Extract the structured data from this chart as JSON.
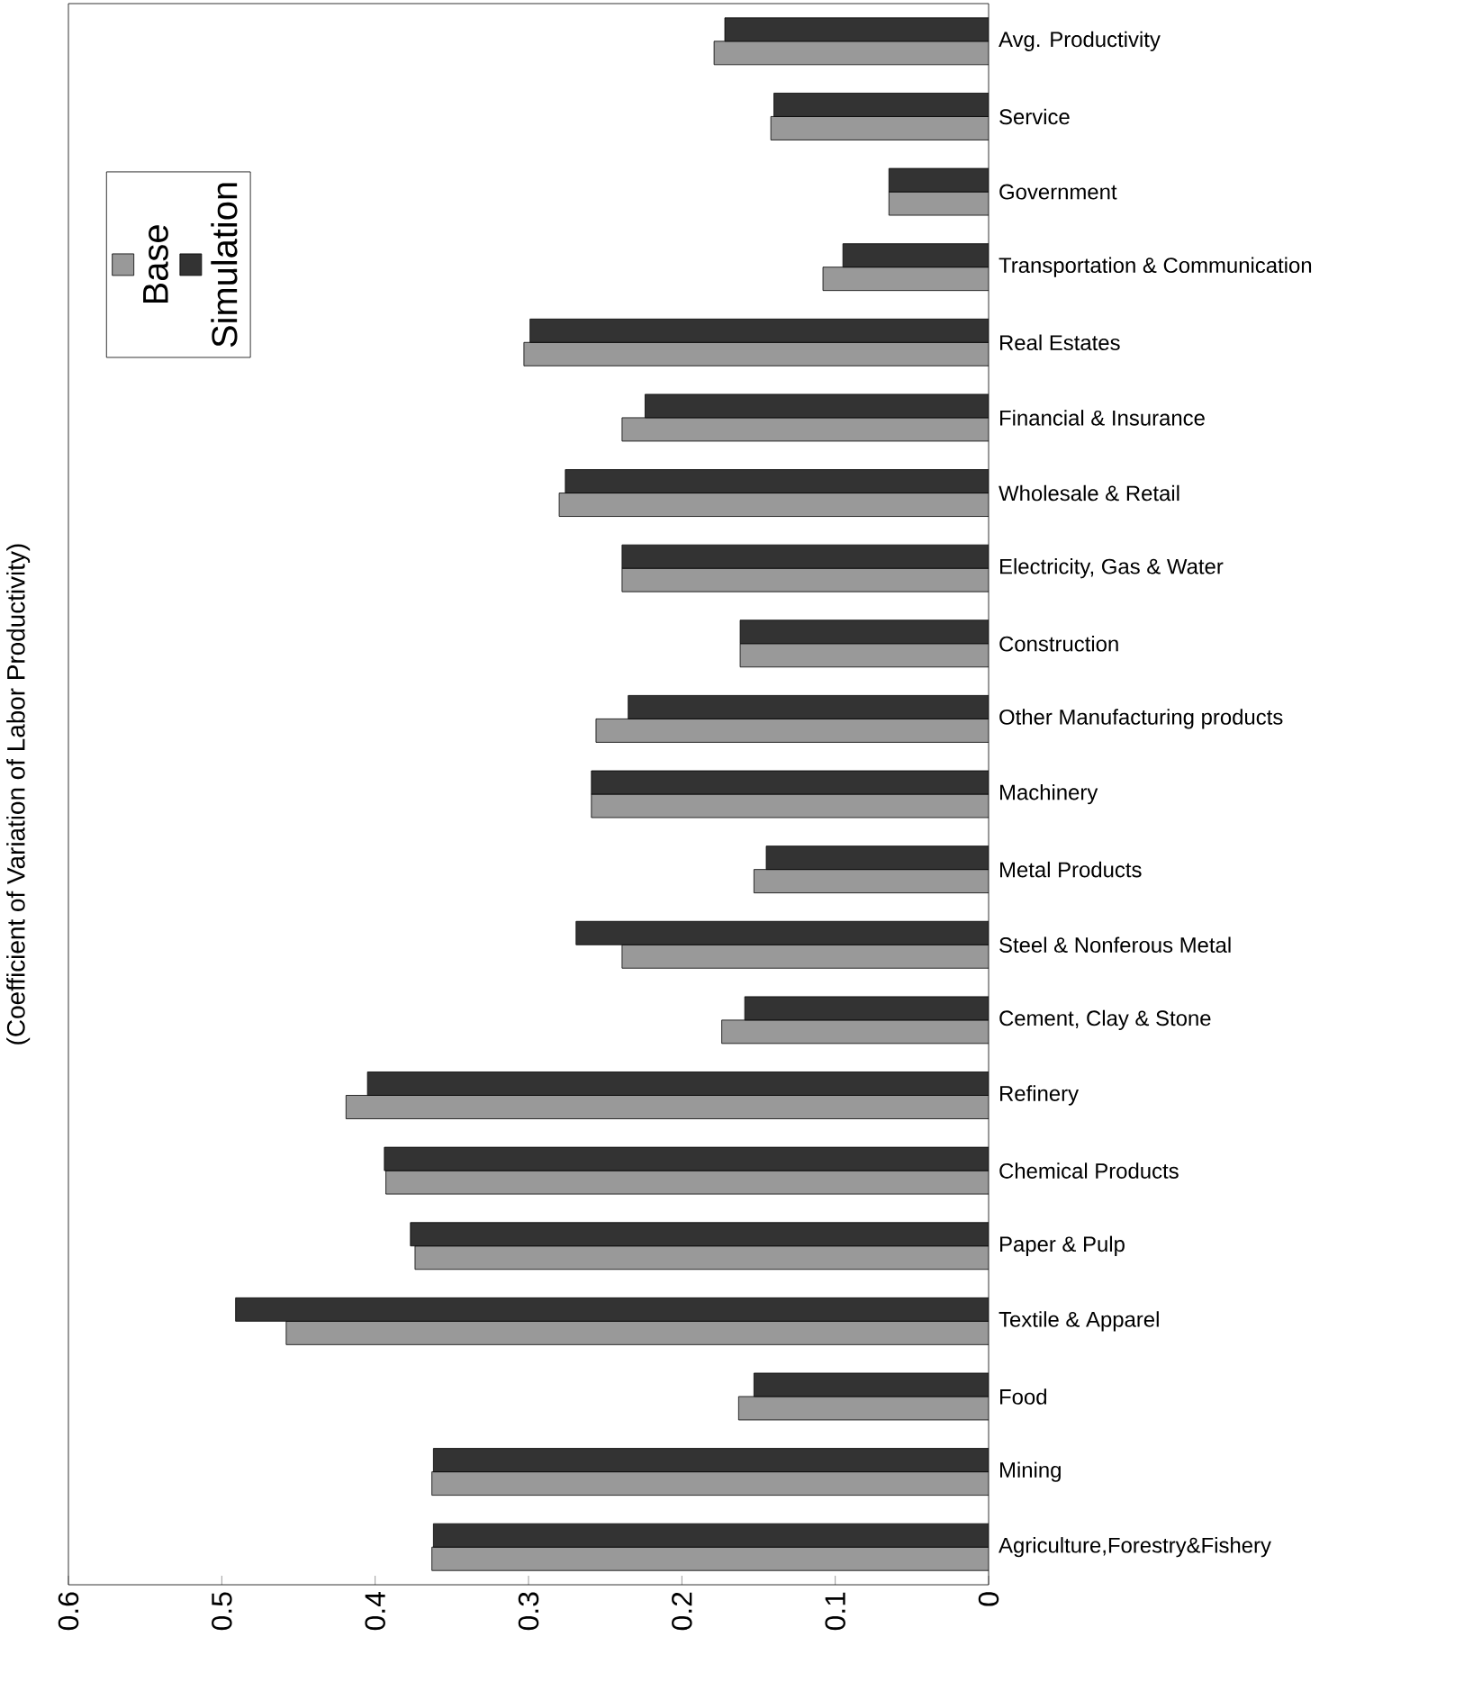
{
  "chart_data": {
    "type": "bar",
    "orientation": "horizontal",
    "ylabel": "(Coefficient of Variation of Labor Productivity)",
    "categories": [
      "Avg. Productivity",
      "Service",
      "Government",
      "Transportation & Communication",
      "Real Estates",
      "Financial & Insurance",
      "Wholesale & Retail",
      "Electricity, Gas & Water",
      "Construction",
      "Other Manufacturing products",
      "Machinery",
      "Metal Products",
      "Steel & Nonferous Metal",
      "Cement, Clay & Stone",
      "Refinery",
      "Chemical Products",
      "Paper & Pulp",
      "Textile & Apparel",
      "Food",
      "Mining",
      "Agriculture,Forestry&Fishery"
    ],
    "series": [
      {
        "name": "Base",
        "color": "#999999",
        "values": [
          0.179,
          0.142,
          0.065,
          0.108,
          0.303,
          0.239,
          0.28,
          0.239,
          0.162,
          0.256,
          0.259,
          0.153,
          0.239,
          0.174,
          0.419,
          0.393,
          0.374,
          0.458,
          0.163,
          0.363,
          0.363
        ]
      },
      {
        "name": "Simulation",
        "color": "#333333",
        "values": [
          0.172,
          0.14,
          0.065,
          0.095,
          0.299,
          0.224,
          0.276,
          0.239,
          0.162,
          0.235,
          0.259,
          0.145,
          0.269,
          0.159,
          0.405,
          0.394,
          0.377,
          0.491,
          0.153,
          0.362,
          0.362
        ]
      }
    ],
    "xlim": [
      0.6,
      0
    ],
    "xticks": [
      0.6,
      0.5,
      0.4,
      0.3,
      0.2,
      0.1,
      0
    ],
    "legend": "top left"
  }
}
